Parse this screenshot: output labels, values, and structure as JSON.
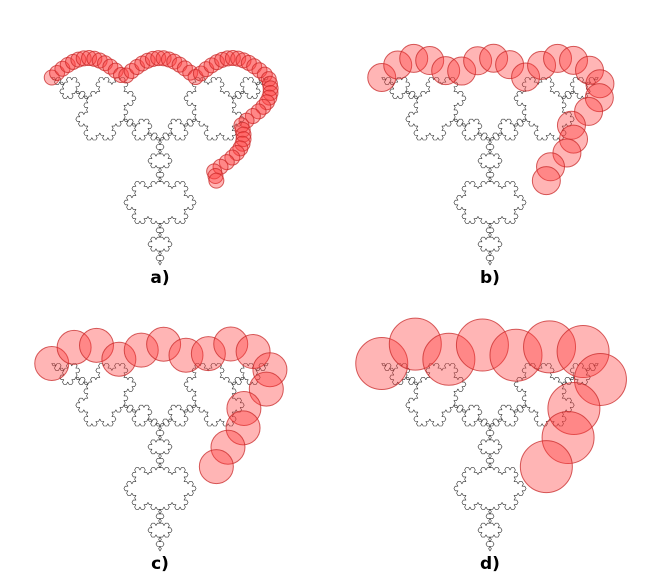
{
  "figure": {
    "panels": [
      {
        "id": "a",
        "label": "a)",
        "disk_count": 64,
        "colors": {
          "curve": "#333333",
          "disk_fill": "#ff3c3c",
          "disk_stroke": "#c82828"
        }
      },
      {
        "id": "b",
        "label": "b)",
        "disk_count": 22,
        "colors": {
          "curve": "#333333",
          "disk_fill": "#ff3c3c",
          "disk_stroke": "#c82828"
        }
      },
      {
        "id": "c",
        "label": "c)",
        "disk_count": 16,
        "colors": {
          "curve": "#333333",
          "disk_fill": "#ff3c3c",
          "disk_stroke": "#c82828"
        }
      },
      {
        "id": "d",
        "label": "d)",
        "disk_count": 11,
        "colors": {
          "curve": "#333333",
          "disk_fill": "#ff3c3c",
          "disk_stroke": "#c82828"
        }
      }
    ]
  }
}
